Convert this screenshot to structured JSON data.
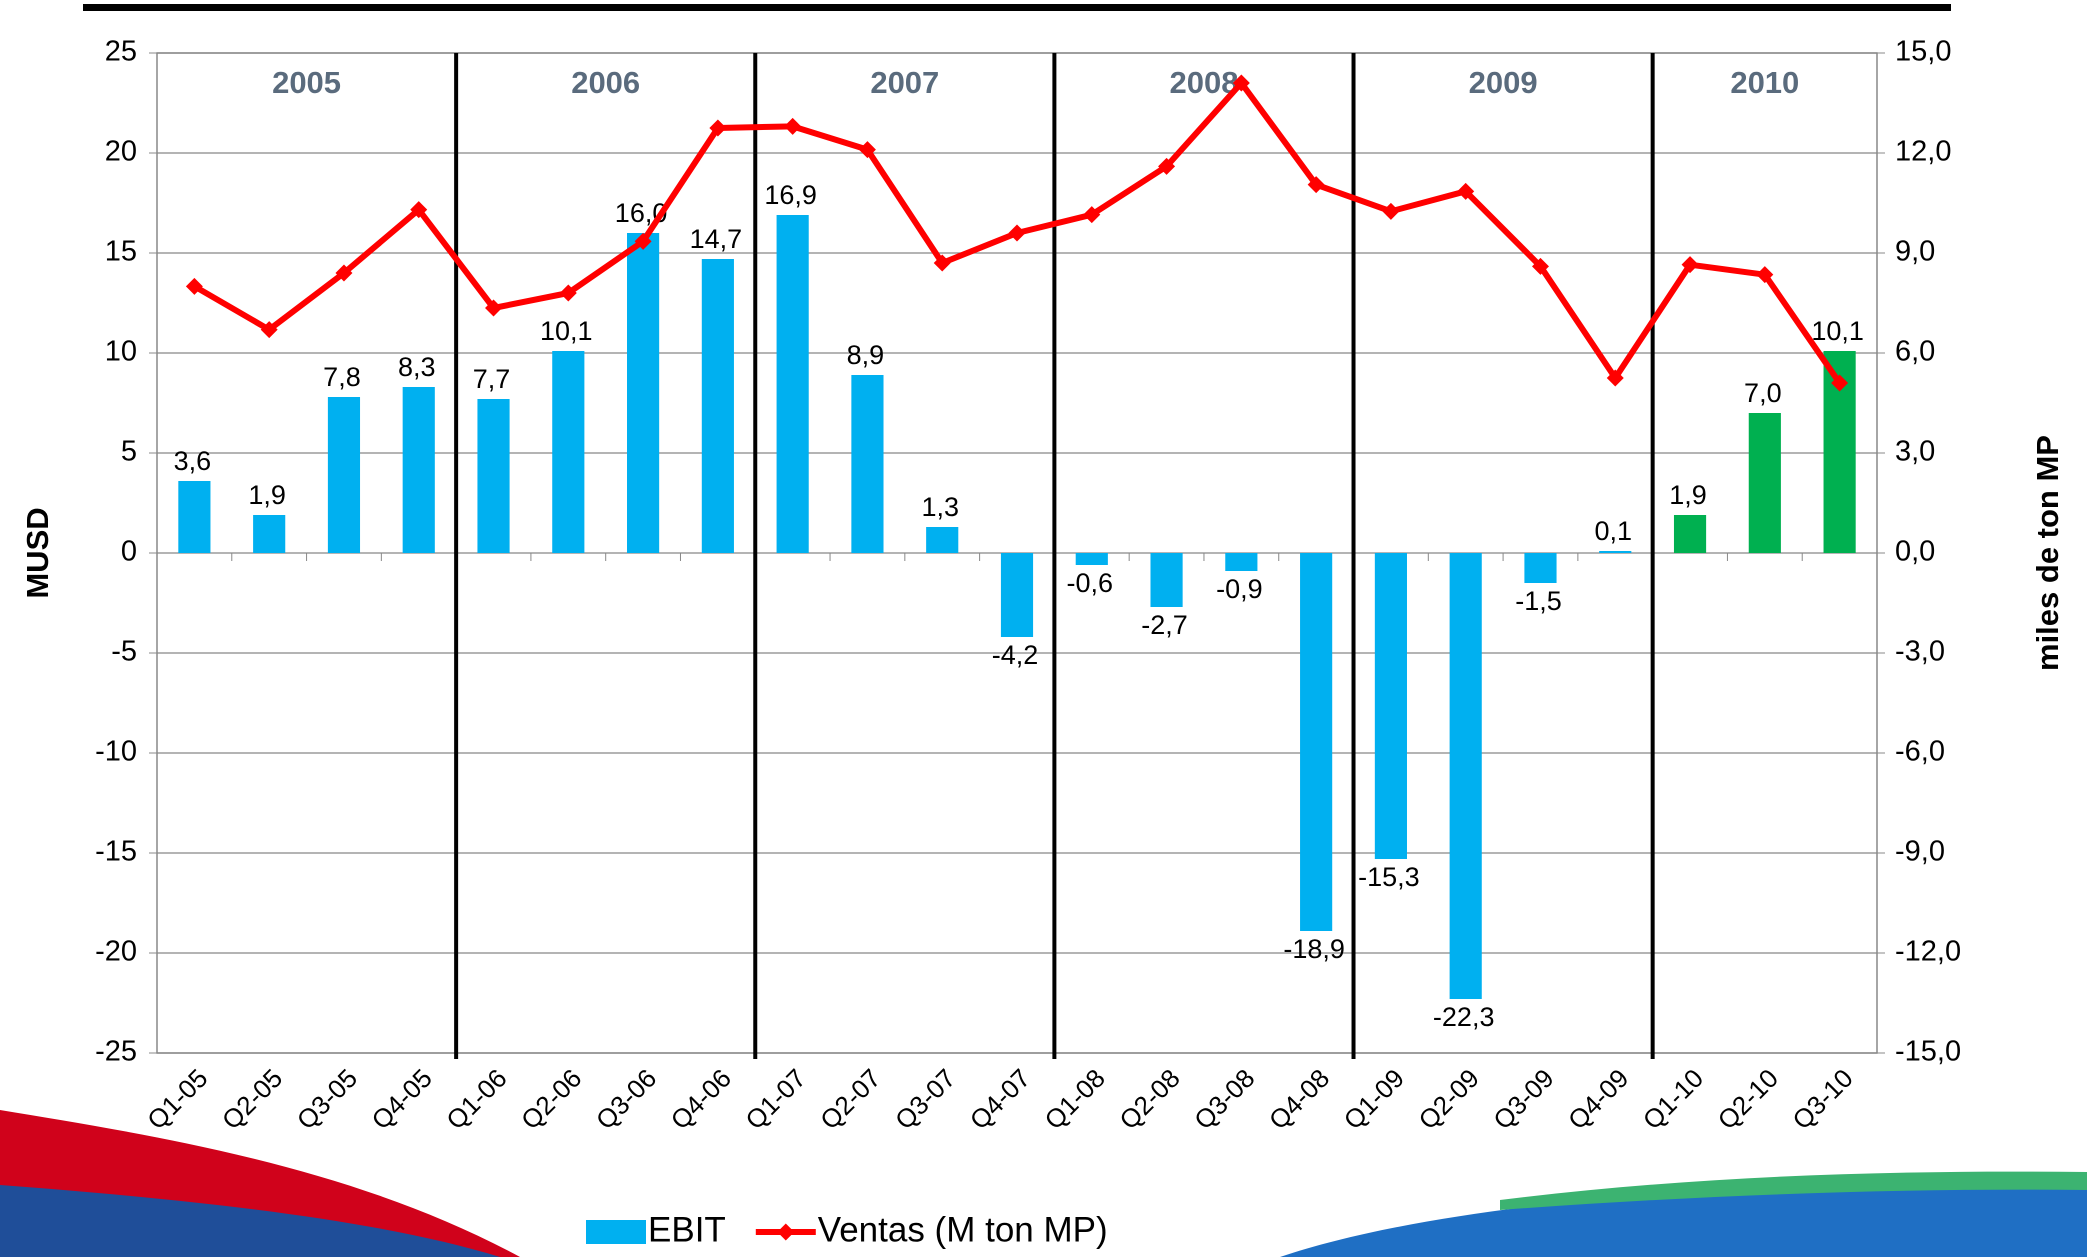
{
  "chart_data": {
    "type": "bar",
    "categories": [
      "Q1-05",
      "Q2-05",
      "Q3-05",
      "Q4-05",
      "Q1-06",
      "Q2-06",
      "Q3-06",
      "Q4-06",
      "Q1-07",
      "Q2-07",
      "Q3-07",
      "Q4-07",
      "Q1-08",
      "Q2-08",
      "Q3-08",
      "Q4-08",
      "Q1-09",
      "Q2-09",
      "Q3-09",
      "Q4-09",
      "Q1-10",
      "Q2-10",
      "Q3-10"
    ],
    "year_labels": [
      "2005",
      "2006",
      "2007",
      "2008",
      "2009",
      "2010"
    ],
    "series": [
      {
        "name": "EBIT",
        "type": "bar",
        "color": "#00b0f0",
        "point_colors": [
          "#00b0f0",
          "#00b0f0",
          "#00b0f0",
          "#00b0f0",
          "#00b0f0",
          "#00b0f0",
          "#00b0f0",
          "#00b0f0",
          "#00b0f0",
          "#00b0f0",
          "#00b0f0",
          "#00b0f0",
          "#00b0f0",
          "#00b0f0",
          "#00b0f0",
          "#00b0f0",
          "#00b0f0",
          "#00b0f0",
          "#00b0f0",
          "#00b0f0",
          "#00b050",
          "#00b050",
          "#00b050"
        ],
        "values": [
          3.6,
          1.9,
          7.8,
          8.3,
          7.7,
          10.1,
          16.0,
          14.7,
          16.9,
          8.9,
          1.3,
          -4.2,
          -0.6,
          -2.7,
          -0.9,
          -18.9,
          -15.3,
          -22.3,
          -1.5,
          0.1,
          1.9,
          7.0,
          10.1
        ],
        "value_labels": [
          "3,6",
          "1,9",
          "7,8",
          "8,3",
          "7,7",
          "10,1",
          "16,0",
          "14,7",
          "16,9",
          "8,9",
          "1,3",
          "-4,2",
          "-0,6",
          "-2,7",
          "-0,9",
          "-18,9",
          "-15,3",
          "-22,3",
          "-1,5",
          "0,1",
          "1,9",
          "7,0",
          "10,1"
        ]
      },
      {
        "name": "Ventas (M ton MP)",
        "type": "line",
        "axis": "y2",
        "color": "#ff0000",
        "values": [
          8.0,
          6.7,
          8.4,
          10.3,
          7.35,
          7.8,
          9.35,
          12.75,
          12.8,
          12.1,
          8.7,
          9.6,
          10.15,
          11.6,
          14.1,
          11.05,
          10.25,
          10.85,
          8.6,
          5.25,
          8.65,
          8.35,
          5.1
        ]
      }
    ],
    "y_label": "MUSD",
    "y2_label": "miles de ton MP",
    "ylim": [
      -25,
      25
    ],
    "yticks": [
      -25,
      -20,
      -15,
      -10,
      -5,
      0,
      5,
      10,
      15,
      20,
      25
    ],
    "y2lim": [
      -15,
      15
    ],
    "y2ticks": [
      {
        "value": -15,
        "label": "-15,0"
      },
      {
        "value": -12,
        "label": "-12,0"
      },
      {
        "value": -9,
        "label": "-9,0"
      },
      {
        "value": -6,
        "label": "-6,0"
      },
      {
        "value": -3,
        "label": "-3,0"
      },
      {
        "value": 0,
        "label": "0,0"
      },
      {
        "value": 3,
        "label": "3,0"
      },
      {
        "value": 6,
        "label": "6,0"
      },
      {
        "value": 9,
        "label": "9,0"
      },
      {
        "value": 12,
        "label": "12,0"
      },
      {
        "value": 15,
        "label": "15,0"
      }
    ],
    "grid": true,
    "legend": "bottom"
  }
}
